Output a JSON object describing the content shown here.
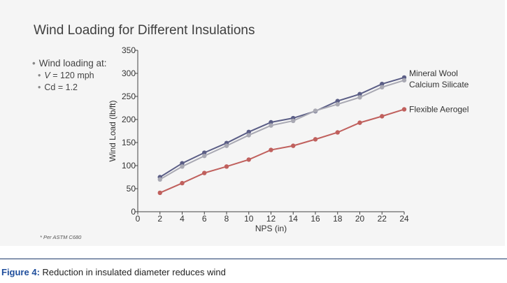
{
  "slide": {
    "title": "Wind Loading for Different Insulations",
    "bullet_heading": "Wind loading at:",
    "bullet_v_symbol": "V",
    "bullet_v_value": "= 120 mph",
    "bullet_cd": "Cd = 1.2",
    "footnote": "* Per ASTM C680"
  },
  "caption": {
    "label": "Figure 4:",
    "text": "Reduction in insulated diameter reduces wind"
  },
  "chart_data": {
    "type": "line",
    "xlabel": "NPS (in)",
    "ylabel": "Wind Load (lb/ft)",
    "xlim": [
      0,
      24
    ],
    "ylim": [
      0,
      350
    ],
    "xticks": [
      0,
      2,
      4,
      6,
      8,
      10,
      12,
      14,
      16,
      18,
      20,
      22,
      24
    ],
    "yticks": [
      0,
      50,
      100,
      150,
      200,
      250,
      300,
      350
    ],
    "grid": false,
    "legend": "inline-right",
    "x": [
      2,
      4,
      6,
      8,
      10,
      12,
      14,
      16,
      18,
      20,
      22,
      24
    ],
    "series": [
      {
        "name": "Mineral Wool",
        "color": "#5b5e86",
        "values": [
          75,
          105,
          128,
          149,
          173,
          194,
          203,
          218,
          240,
          255,
          277,
          291
        ]
      },
      {
        "name": "Calcium Silicate",
        "color": "#a9a9b3",
        "values": [
          70,
          98,
          121,
          143,
          166,
          187,
          197,
          219,
          233,
          248,
          270,
          285
        ]
      },
      {
        "name": "Flexible Aerogel",
        "color": "#c0605d",
        "values": [
          41,
          62,
          84,
          98,
          113,
          134,
          143,
          157,
          172,
          193,
          207,
          222
        ]
      }
    ]
  }
}
